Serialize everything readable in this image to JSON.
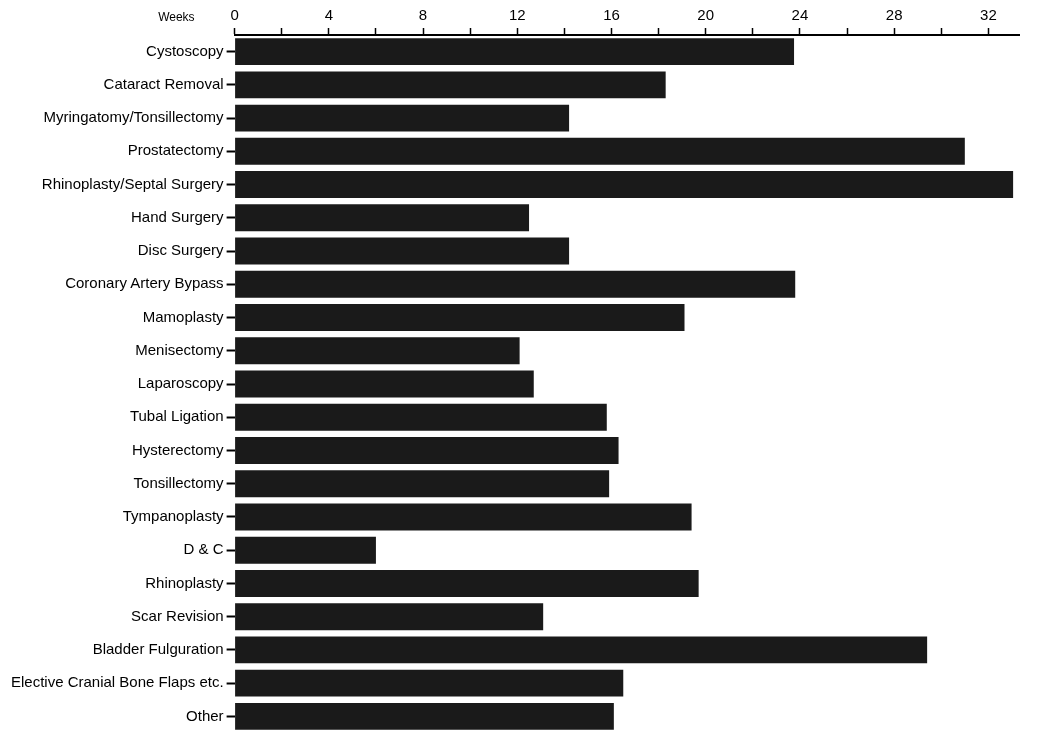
{
  "chart_data": {
    "type": "bar",
    "orientation": "horizontal",
    "xlabel": "Weeks",
    "categories": [
      "Cystoscopy",
      "Cataract Removal",
      "Myringatomy/Tonsillectomy",
      "Prostatectomy",
      "Rhinoplasty/Septal Surgery",
      "Hand Surgery",
      "Disc Surgery",
      "Coronary Artery Bypass",
      "Mamoplasty",
      "Menisectomy",
      "Laparoscopy",
      "Tubal Ligation",
      "Hysterectomy",
      "Tonsillectomy",
      "Tympanoplasty",
      "D & C",
      "Rhinoplasty",
      "Scar Revision",
      "Bladder Fulguration",
      "Elective Cranial Bone Flaps etc.",
      "Other"
    ],
    "values": [
      23.75,
      18.3,
      14.2,
      31.0,
      33.05,
      12.5,
      14.2,
      23.8,
      19.1,
      12.1,
      12.7,
      15.8,
      16.3,
      15.9,
      19.4,
      6.0,
      19.7,
      13.1,
      29.4,
      16.5,
      16.1
    ],
    "color": "#1a1a1a",
    "xlim": [
      0,
      33.3
    ],
    "xticks": [
      0,
      {
        "value": 2,
        "label": null
      },
      4,
      {
        "value": 6,
        "label": null
      },
      8,
      {
        "value": 10,
        "label": null
      },
      12,
      {
        "value": 14,
        "label": null
      },
      16,
      {
        "value": 18,
        "label": null
      },
      20,
      {
        "value": 22,
        "label": null
      },
      24,
      {
        "value": 26,
        "label": null
      },
      28,
      {
        "value": 30,
        "label": null
      },
      32
    ],
    "grid": false,
    "legend": false
  }
}
